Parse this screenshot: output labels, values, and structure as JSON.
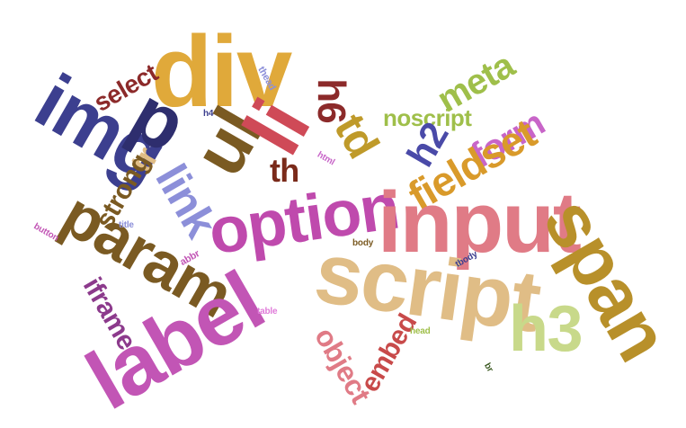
{
  "words": [
    {
      "text": "div",
      "color": "#e0a93a"
    },
    {
      "text": "img",
      "color": "#3c3f8f"
    },
    {
      "text": "p",
      "color": "#2e2e6e"
    },
    {
      "text": "ul",
      "color": "#7a5a22"
    },
    {
      "text": "li",
      "color": "#cf4a57"
    },
    {
      "text": "h6",
      "color": "#8c2a2a"
    },
    {
      "text": "td",
      "color": "#bf9a2a"
    },
    {
      "text": "meta",
      "color": "#9fbf4a"
    },
    {
      "text": "noscript",
      "color": "#9fbf4a"
    },
    {
      "text": "h2",
      "color": "#4a4aa8"
    },
    {
      "text": "form",
      "color": "#c865c8"
    },
    {
      "text": "fieldset",
      "color": "#d99a2a"
    },
    {
      "text": "select",
      "color": "#8c2a2a"
    },
    {
      "text": "tr",
      "color": "#e0bd86"
    },
    {
      "text": "th",
      "color": "#7a2a1a"
    },
    {
      "text": "link",
      "color": "#8c8fd9"
    },
    {
      "text": "strong",
      "color": "#7a5a22"
    },
    {
      "text": "option",
      "color": "#bf4aad"
    },
    {
      "text": "input",
      "color": "#e07b86"
    },
    {
      "text": "param",
      "color": "#7a5a22"
    },
    {
      "text": "span",
      "color": "#b8902a"
    },
    {
      "text": "script",
      "color": "#e0bd86"
    },
    {
      "text": "h3",
      "color": "#c8d98a"
    },
    {
      "text": "label",
      "color": "#c255b5"
    },
    {
      "text": "iframe",
      "color": "#8c3a8c"
    },
    {
      "text": "object",
      "color": "#e07b86"
    },
    {
      "text": "embed",
      "color": "#c84a4a"
    },
    {
      "text": "thead",
      "color": "#8c8fd9"
    },
    {
      "text": "h4",
      "color": "#3c3f8f"
    },
    {
      "text": "html",
      "color": "#c865c8"
    },
    {
      "text": "button",
      "color": "#c255b5"
    },
    {
      "text": "title",
      "color": "#8c8fd9"
    },
    {
      "text": "abbr",
      "color": "#c255b5"
    },
    {
      "text": "table",
      "color": "#e07bd9"
    },
    {
      "text": "body",
      "color": "#7a5a22"
    },
    {
      "text": "tbody",
      "color": "#3c3f8f"
    },
    {
      "text": "head",
      "color": "#9fbf4a"
    },
    {
      "text": "br",
      "color": "#3c5a22"
    }
  ]
}
